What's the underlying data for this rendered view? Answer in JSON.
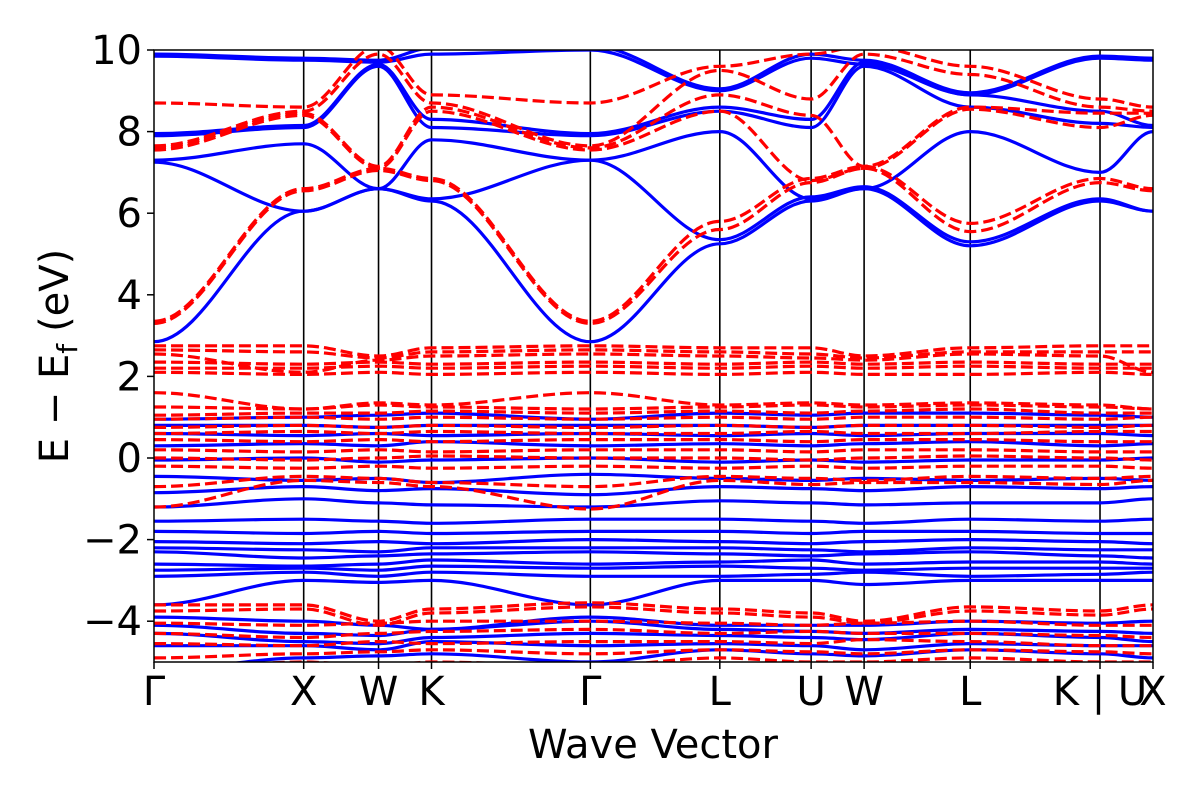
{
  "chart_data": {
    "type": "line",
    "title": "",
    "xlabel": "Wave Vector",
    "ylabel": "E − E",
    "ylabel_subscript": "f",
    "ylabel_unit": "(eV)",
    "ylim": [
      -5,
      10
    ],
    "yticks": [
      {
        "value": 10,
        "label": "10"
      },
      {
        "value": 8,
        "label": "8"
      },
      {
        "value": 6,
        "label": "6"
      },
      {
        "value": 4,
        "label": "4"
      },
      {
        "value": 2,
        "label": "2"
      },
      {
        "value": 0,
        "label": "0"
      },
      {
        "value": -2,
        "label": "−2"
      },
      {
        "value": -4,
        "label": "−4"
      }
    ],
    "kpath": {
      "points": [
        "Γ",
        "X",
        "W",
        "K",
        "Γ",
        "L",
        "U",
        "W",
        "L",
        "K|U",
        "X"
      ],
      "tick_labels": [
        "Γ",
        "X",
        "W",
        "K",
        "Γ",
        "L",
        "U",
        "W",
        "L",
        "K | U",
        "X"
      ],
      "positions": [
        0,
        1.0,
        1.5,
        1.854,
        2.915,
        3.78,
        4.39,
        4.744,
        5.453,
        6.32,
        6.674
      ]
    },
    "colors": {
      "series_a": "#0000ff",
      "series_b": "#ff0000",
      "axis": "#000000"
    },
    "series": [
      {
        "style": "solid",
        "color": "#0000ff",
        "bands": [
          [
            -6.0,
            -5.8,
            -5.7,
            -5.6,
            -6.0,
            -5.6,
            -5.7,
            -5.7,
            -5.6,
            -5.6,
            -5.8
          ],
          [
            -5.2,
            -4.9,
            -4.85,
            -4.8,
            -5.0,
            -4.7,
            -4.8,
            -4.85,
            -4.7,
            -4.8,
            -4.9
          ],
          [
            -4.6,
            -4.6,
            -4.7,
            -4.5,
            -4.6,
            -4.55,
            -4.6,
            -4.7,
            -4.55,
            -4.6,
            -4.6
          ],
          [
            -4.3,
            -4.5,
            -4.55,
            -4.4,
            -4.3,
            -4.35,
            -4.4,
            -4.45,
            -4.3,
            -4.4,
            -4.5
          ],
          [
            -4.1,
            -4.3,
            -4.35,
            -4.2,
            -4.0,
            -4.2,
            -4.25,
            -4.3,
            -4.2,
            -4.25,
            -4.3
          ],
          [
            -3.9,
            -4.0,
            -4.1,
            -4.2,
            -3.9,
            -4.1,
            -4.1,
            -4.1,
            -4.0,
            -4.05,
            -4.0
          ],
          [
            -3.6,
            -3.0,
            -3.05,
            -3.0,
            -3.6,
            -3.0,
            -3.0,
            -3.1,
            -3.0,
            -3.0,
            -3.0
          ],
          [
            -2.9,
            -2.8,
            -2.9,
            -2.8,
            -2.9,
            -2.9,
            -2.85,
            -2.8,
            -2.9,
            -2.85,
            -2.8
          ],
          [
            -2.75,
            -2.7,
            -2.75,
            -2.65,
            -2.7,
            -2.65,
            -2.7,
            -2.75,
            -2.7,
            -2.7,
            -2.7
          ],
          [
            -2.6,
            -2.65,
            -2.6,
            -2.5,
            -2.6,
            -2.55,
            -2.5,
            -2.6,
            -2.55,
            -2.55,
            -2.6
          ],
          [
            -2.3,
            -2.45,
            -2.4,
            -2.35,
            -2.3,
            -2.35,
            -2.4,
            -2.35,
            -2.3,
            -2.4,
            -2.45
          ],
          [
            -2.2,
            -2.25,
            -2.3,
            -2.2,
            -2.2,
            -2.2,
            -2.25,
            -2.3,
            -2.2,
            -2.25,
            -2.25
          ],
          [
            -2.05,
            -2.1,
            -2.05,
            -2.1,
            -2.0,
            -2.05,
            -2.1,
            -2.05,
            -2.0,
            -2.05,
            -2.1
          ],
          [
            -1.8,
            -1.85,
            -1.8,
            -1.85,
            -1.8,
            -1.8,
            -1.85,
            -1.8,
            -1.8,
            -1.85,
            -1.85
          ],
          [
            -1.55,
            -1.5,
            -1.55,
            -1.6,
            -1.5,
            -1.5,
            -1.55,
            -1.6,
            -1.5,
            -1.55,
            -1.5
          ],
          [
            -1.2,
            -1.0,
            -1.1,
            -1.15,
            -1.2,
            -1.05,
            -1.1,
            -1.15,
            -1.1,
            -1.1,
            -1.0
          ],
          [
            -0.85,
            -0.7,
            -0.8,
            -0.75,
            -0.9,
            -0.7,
            -0.75,
            -0.8,
            -0.7,
            -0.75,
            -0.7
          ],
          [
            -0.45,
            -0.55,
            -0.5,
            -0.6,
            -0.4,
            -0.5,
            -0.55,
            -0.5,
            -0.55,
            -0.5,
            -0.55
          ],
          [
            -0.05,
            0.0,
            -0.1,
            -0.05,
            0.0,
            -0.1,
            -0.05,
            -0.1,
            -0.05,
            -0.05,
            0.0
          ],
          [
            0.3,
            0.35,
            0.3,
            0.4,
            0.3,
            0.35,
            0.3,
            0.35,
            0.4,
            0.3,
            0.35
          ],
          [
            0.6,
            0.55,
            0.6,
            0.55,
            0.6,
            0.55,
            0.6,
            0.55,
            0.6,
            0.6,
            0.55
          ],
          [
            0.8,
            0.8,
            0.75,
            0.8,
            0.8,
            0.8,
            0.75,
            0.8,
            0.8,
            0.8,
            0.8
          ],
          [
            0.95,
            1.0,
            1.05,
            1.1,
            0.95,
            1.1,
            1.05,
            1.1,
            1.1,
            1.05,
            1.0
          ],
          [
            2.85,
            6.05,
            6.6,
            6.3,
            2.85,
            5.25,
            6.3,
            6.6,
            5.2,
            6.3,
            6.05
          ],
          [
            7.25,
            6.05,
            6.6,
            6.35,
            7.3,
            5.35,
            6.4,
            6.65,
            5.3,
            6.35,
            6.05
          ],
          [
            7.3,
            7.7,
            6.6,
            7.8,
            7.3,
            8.0,
            6.35,
            6.6,
            8.0,
            7.0,
            8.0
          ],
          [
            7.9,
            8.1,
            9.6,
            8.1,
            7.9,
            8.5,
            8.1,
            9.6,
            8.6,
            8.2,
            8.1
          ],
          [
            7.95,
            8.15,
            9.65,
            8.3,
            7.95,
            8.6,
            8.3,
            9.7,
            8.9,
            8.5,
            8.15
          ],
          [
            9.85,
            9.75,
            9.7,
            9.9,
            10.0,
            9.0,
            9.8,
            9.65,
            8.9,
            9.8,
            9.75
          ],
          [
            9.9,
            9.8,
            9.75,
            10.05,
            10.1,
            9.05,
            9.9,
            9.75,
            8.95,
            9.85,
            9.8
          ]
        ]
      },
      {
        "style": "dashed",
        "color": "#ff0000",
        "bands": [
          [
            -5.2,
            -5.0,
            -5.1,
            -5.0,
            -5.1,
            -4.9,
            -5.0,
            -5.0,
            -4.9,
            -5.0,
            -5.0
          ],
          [
            -4.9,
            -4.8,
            -4.75,
            -4.7,
            -4.8,
            -4.7,
            -4.75,
            -4.8,
            -4.7,
            -4.75,
            -4.8
          ],
          [
            -4.55,
            -4.6,
            -4.5,
            -4.55,
            -4.5,
            -4.5,
            -4.55,
            -4.45,
            -4.5,
            -4.6,
            -4.6
          ],
          [
            -4.3,
            -4.4,
            -4.3,
            -4.25,
            -4.2,
            -4.3,
            -4.25,
            -4.3,
            -4.3,
            -4.35,
            -4.4
          ],
          [
            -4.05,
            -4.1,
            -4.05,
            -4.0,
            -4.0,
            -4.05,
            -4.1,
            -4.05,
            -4.0,
            -4.1,
            -4.1
          ],
          [
            -3.75,
            -3.7,
            -4.1,
            -3.8,
            -3.65,
            -3.8,
            -3.9,
            -4.05,
            -3.75,
            -3.85,
            -3.7
          ],
          [
            -3.6,
            -3.6,
            -4.0,
            -3.7,
            -3.55,
            -3.7,
            -3.8,
            -4.0,
            -3.65,
            -3.75,
            -3.6
          ],
          [
            -1.2,
            -0.55,
            -0.6,
            -0.7,
            -1.25,
            -0.55,
            -0.65,
            -0.6,
            -0.6,
            -0.65,
            -0.55
          ],
          [
            -0.7,
            -0.45,
            -0.5,
            -0.6,
            -0.7,
            -0.45,
            -0.5,
            -0.55,
            -0.45,
            -0.5,
            -0.45
          ],
          [
            -0.2,
            -0.25,
            -0.2,
            -0.25,
            -0.2,
            -0.25,
            -0.2,
            -0.25,
            -0.2,
            -0.2,
            -0.25
          ],
          [
            0.0,
            -0.05,
            0.0,
            0.05,
            0.0,
            0.0,
            -0.05,
            0.0,
            0.05,
            0.0,
            -0.05
          ],
          [
            0.2,
            0.15,
            0.2,
            0.15,
            0.2,
            0.2,
            0.15,
            0.2,
            0.2,
            0.15,
            0.15
          ],
          [
            0.45,
            0.4,
            0.45,
            0.4,
            0.45,
            0.45,
            0.4,
            0.45,
            0.45,
            0.4,
            0.4
          ],
          [
            0.6,
            0.65,
            0.6,
            0.65,
            0.6,
            0.6,
            0.65,
            0.6,
            0.6,
            0.65,
            0.65
          ],
          [
            0.75,
            0.8,
            0.75,
            0.8,
            0.75,
            0.8,
            0.75,
            0.8,
            0.8,
            0.75,
            0.8
          ],
          [
            0.95,
            1.0,
            0.95,
            1.0,
            0.95,
            1.0,
            0.95,
            1.0,
            1.0,
            0.95,
            1.0
          ],
          [
            1.05,
            1.1,
            1.1,
            1.15,
            1.1,
            1.15,
            1.1,
            1.15,
            1.2,
            1.1,
            1.1
          ],
          [
            1.25,
            1.2,
            1.3,
            1.25,
            1.2,
            1.25,
            1.3,
            1.25,
            1.3,
            1.25,
            1.2
          ],
          [
            1.6,
            1.2,
            1.35,
            1.3,
            1.6,
            1.3,
            1.35,
            1.3,
            1.35,
            1.3,
            1.2
          ],
          [
            2.1,
            2.05,
            2.1,
            2.05,
            2.1,
            2.05,
            2.1,
            2.05,
            2.05,
            2.1,
            2.05
          ],
          [
            2.2,
            2.2,
            2.25,
            2.2,
            2.25,
            2.2,
            2.25,
            2.2,
            2.25,
            2.2,
            2.2
          ],
          [
            2.35,
            2.3,
            2.35,
            2.3,
            2.35,
            2.3,
            2.35,
            2.3,
            2.35,
            2.3,
            2.3
          ],
          [
            2.55,
            2.1,
            2.4,
            2.5,
            2.55,
            2.5,
            2.45,
            2.4,
            2.55,
            2.5,
            2.1
          ],
          [
            2.65,
            2.6,
            2.45,
            2.6,
            2.65,
            2.6,
            2.55,
            2.45,
            2.6,
            2.6,
            2.6
          ],
          [
            2.75,
            2.75,
            2.5,
            2.7,
            2.75,
            2.7,
            2.7,
            2.5,
            2.7,
            2.75,
            2.75
          ],
          [
            3.3,
            6.55,
            7.05,
            6.8,
            3.3,
            5.6,
            6.75,
            7.1,
            5.55,
            6.75,
            6.55
          ],
          [
            3.35,
            6.6,
            7.1,
            6.85,
            3.35,
            5.8,
            6.85,
            7.15,
            5.75,
            6.85,
            6.6
          ],
          [
            7.55,
            8.4,
            7.1,
            8.5,
            7.55,
            8.5,
            6.8,
            7.1,
            8.55,
            8.1,
            8.4
          ],
          [
            7.6,
            8.45,
            7.15,
            8.6,
            7.6,
            8.9,
            8.4,
            7.15,
            8.6,
            8.45,
            8.45
          ],
          [
            7.65,
            8.5,
            9.9,
            8.7,
            7.65,
            9.5,
            8.8,
            9.9,
            9.4,
            8.6,
            8.5
          ],
          [
            8.7,
            8.6,
            10.1,
            8.9,
            8.7,
            9.6,
            9.9,
            10.1,
            9.6,
            8.8,
            8.6
          ]
        ]
      }
    ]
  }
}
